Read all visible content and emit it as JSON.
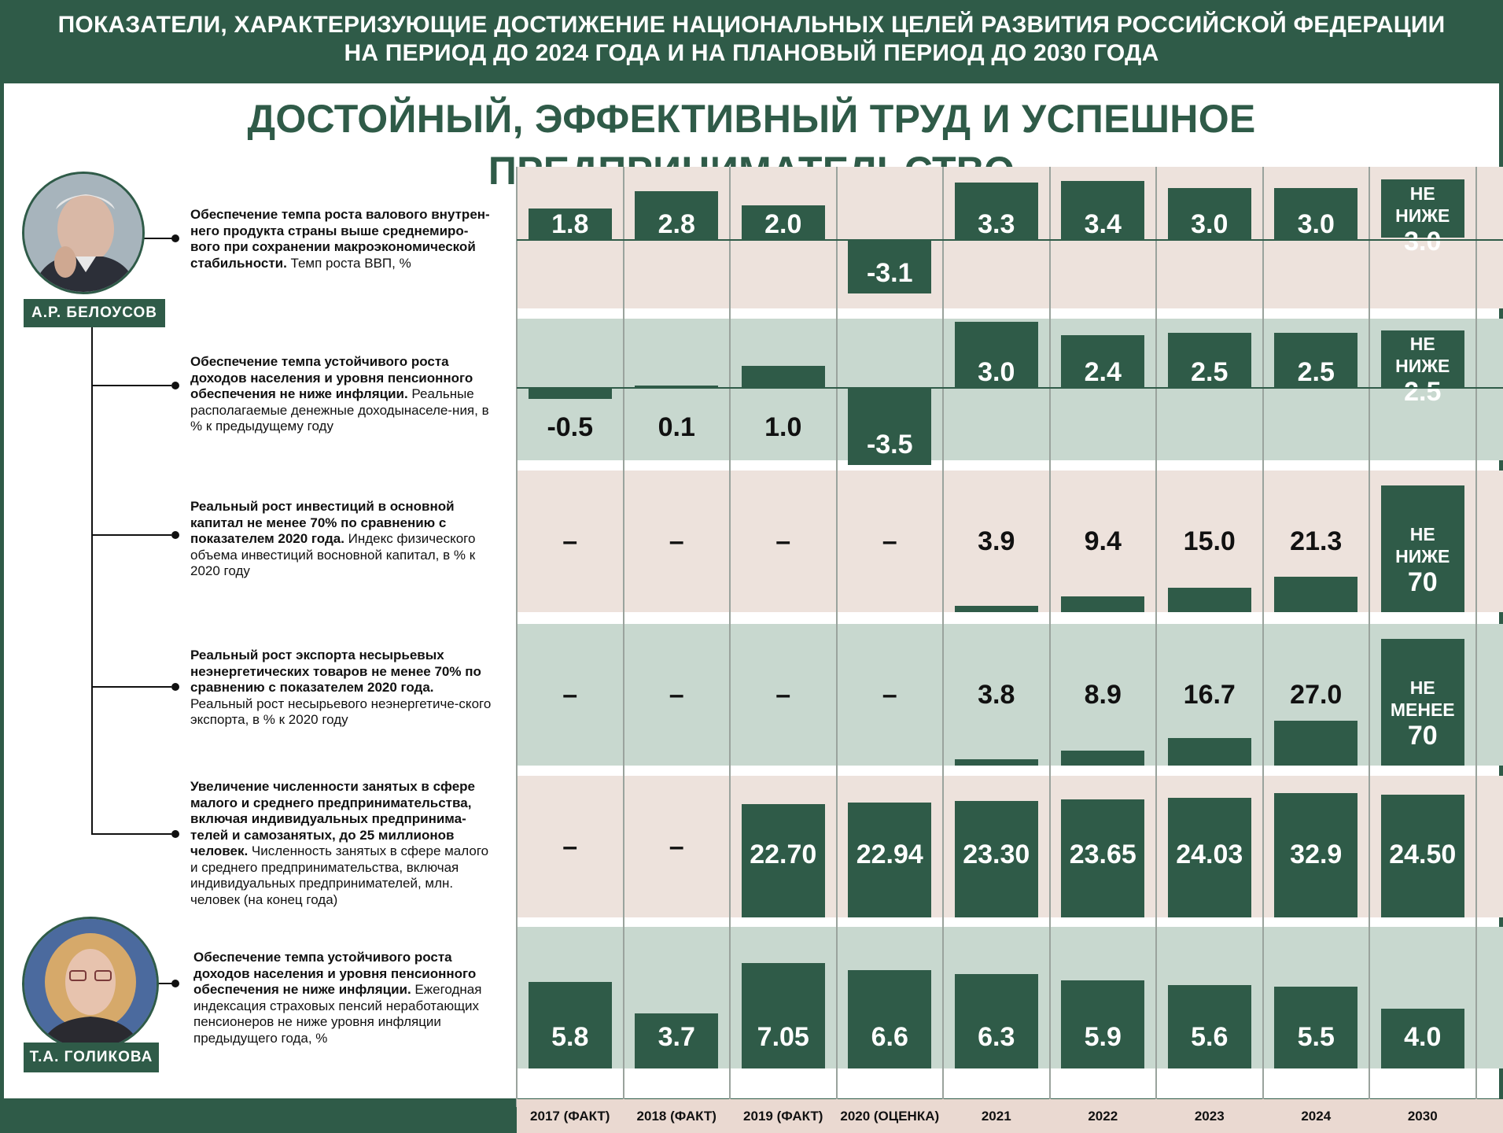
{
  "header": {
    "line1": "ПОКАЗАТЕЛИ, ХАРАКТЕРИЗУЮЩИЕ ДОСТИЖЕНИЕ НАЦИОНАЛЬНЫХ ЦЕЛЕЙ РАЗВИТИЯ РОССИЙСКОЙ ФЕДЕРАЦИИ",
    "line2": "НА ПЕРИОД ДО 2024 ГОДА И НА ПЛАНОВЫЙ ПЕРИОД ДО 2030 ГОДА"
  },
  "main_title": "ДОСТОЙНЫЙ, ЭФФЕКТИВНЫЙ ТРУД И УСПЕШНОЕ ПРЕДПРИНИМАТЕЛЬСТВО",
  "people": [
    {
      "name": "А.Р. БЕЛОУСОВ"
    },
    {
      "name": "Т.А. ГОЛИКОВА"
    }
  ],
  "colors": {
    "bar": "#2f5b48",
    "row_pink": "#ede2dc",
    "row_green": "#c8d8cf",
    "text_dark": "#111111"
  },
  "chart_data": {
    "type": "bar",
    "categories": [
      "2017 (ФАКТ)",
      "2018 (ФАКТ)",
      "2019 (ФАКТ)",
      "2020 (ОЦЕНКА)",
      "2021",
      "2022",
      "2023",
      "2024",
      "2030"
    ],
    "series": [
      {
        "desc_bold": "Обеспечение темпа роста валового внутрен-него продукта страны выше среднемиро-вого при сохранении макроэкономической стабильности.",
        "desc_normal": " Темп роста ВВП, %",
        "values": [
          1.8,
          2.8,
          2.0,
          -3.1,
          3.3,
          3.4,
          3.0,
          3.0,
          3.0
        ],
        "labels": [
          "1.8",
          "2.8",
          "2.0",
          "-3.1",
          "3.3",
          "3.4",
          "3.0",
          "3.0",
          "3.0"
        ],
        "last_prefix": "НЕ НИЖЕ"
      },
      {
        "desc_bold": "Обеспечение темпа устойчивого роста доходов населения и уровня пенсионного обеспечения не ниже инфляции.",
        "desc_normal": " Реальные располагаемые денежные доходынаселе-ния, в % к предыдущему году",
        "values": [
          -0.5,
          0.1,
          1.0,
          -3.5,
          3.0,
          2.4,
          2.5,
          2.5,
          2.5
        ],
        "labels": [
          "-0.5",
          "0.1",
          "1.0",
          "-3.5",
          "3.0",
          "2.4",
          "2.5",
          "2.5",
          "2.5"
        ],
        "last_prefix": "НЕ НИЖЕ"
      },
      {
        "desc_bold": "Реальный рост инвестиций в основной капитал не менее 70% по сравнению с показателем 2020 года.",
        "desc_normal": " Индекс физического объема инвестиций восновной капитал, в % к 2020 году",
        "values": [
          null,
          null,
          null,
          null,
          3.9,
          9.4,
          15.0,
          21.3,
          70
        ],
        "labels": [
          "–",
          "–",
          "–",
          "–",
          "3.9",
          "9.4",
          "15.0",
          "21.3",
          "70"
        ],
        "last_prefix": "НЕ НИЖЕ"
      },
      {
        "desc_bold": "Реальный рост экспорта несырьевых неэнергетических товаров не менее 70% по сравнению с показателем 2020 года.",
        "desc_normal": " Реальный рост несырьевого неэнергетиче-ского экспорта, в % к 2020 году",
        "values": [
          null,
          null,
          null,
          null,
          3.8,
          8.9,
          16.7,
          27.0,
          70
        ],
        "labels": [
          "–",
          "–",
          "–",
          "–",
          "3.8",
          "8.9",
          "16.7",
          "27.0",
          "70"
        ],
        "last_prefix": "НЕ МЕНЕЕ"
      },
      {
        "desc_bold": "Увеличение численности занятых в сфере малого и среднего предпринимательства, включая индивидуальных предпринима-телей и самозанятых, до 25 миллионов человек.",
        "desc_normal": " Численность занятых в сфере малого и среднего предпринимательства, включая индивидуальных предпринимателей, млн. человек (на конец года)",
        "values": [
          null,
          null,
          22.7,
          22.94,
          23.3,
          23.65,
          24.03,
          32.9,
          24.5
        ],
        "labels": [
          "–",
          "–",
          "22.70",
          "22.94",
          "23.30",
          "23.65",
          "24.03",
          "32.9",
          "24.50"
        ],
        "last_prefix": ""
      },
      {
        "desc_bold": "Обеспечение темпа устойчивого роста доходов населения и уровня пенсионного обеспечения не ниже инфляции.",
        "desc_normal": " Ежегодная индексация страховых пенсий неработающих пенсионеров не ниже уровня инфляции предыдущего года, %",
        "values": [
          5.8,
          3.7,
          7.05,
          6.6,
          6.3,
          5.9,
          5.6,
          5.5,
          4.0
        ],
        "labels": [
          "5.8",
          "3.7",
          "7.05",
          "6.6",
          "6.3",
          "5.9",
          "5.6",
          "5.5",
          "4.0"
        ],
        "last_prefix": ""
      }
    ]
  }
}
